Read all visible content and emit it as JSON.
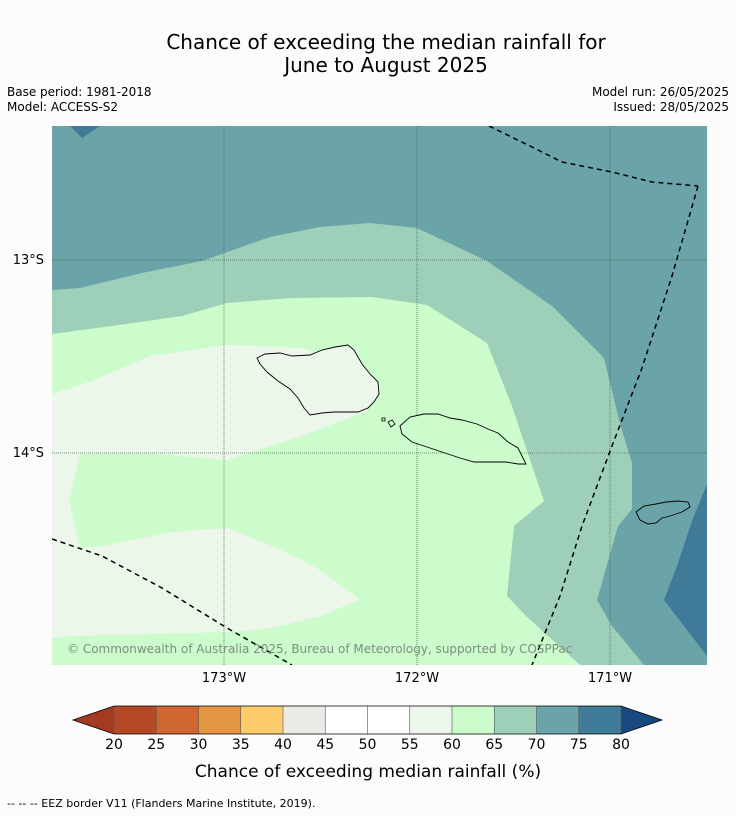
{
  "title_line1": "Chance of exceeding the median rainfall for",
  "title_line2": "June to August 2025",
  "base_period": "Base period: 1981-2018",
  "model": "Model: ACCESS-S2",
  "model_run": "Model run: 26/05/2025",
  "issued": "Issued: 28/05/2025",
  "lat_labels": [
    "13°S",
    "14°S"
  ],
  "lon_labels": [
    "173°W",
    "172°W",
    "171°W"
  ],
  "copyright": "© Commonwealth of Australia 2025, Bureau of Meteorology, supported by COSPPac",
  "colorbar": {
    "ticks": [
      "20",
      "25",
      "30",
      "35",
      "40",
      "45",
      "50",
      "55",
      "60",
      "65",
      "70",
      "75",
      "80"
    ],
    "colors": [
      "#a23b20",
      "#b34a25",
      "#d06530",
      "#e39542",
      "#fecb6a",
      "#eceae5",
      "#ffffff",
      "#ffffff",
      "#ecf6eb",
      "#ccfccb",
      "#9ed0b9",
      "#6ba4a8",
      "#407a99",
      "#184a80"
    ],
    "title": "Chance of exceeding median rainfall (%)"
  },
  "footer": "--  --  -- EEZ border V11 (Flanders Marine Institute, 2019)."
}
